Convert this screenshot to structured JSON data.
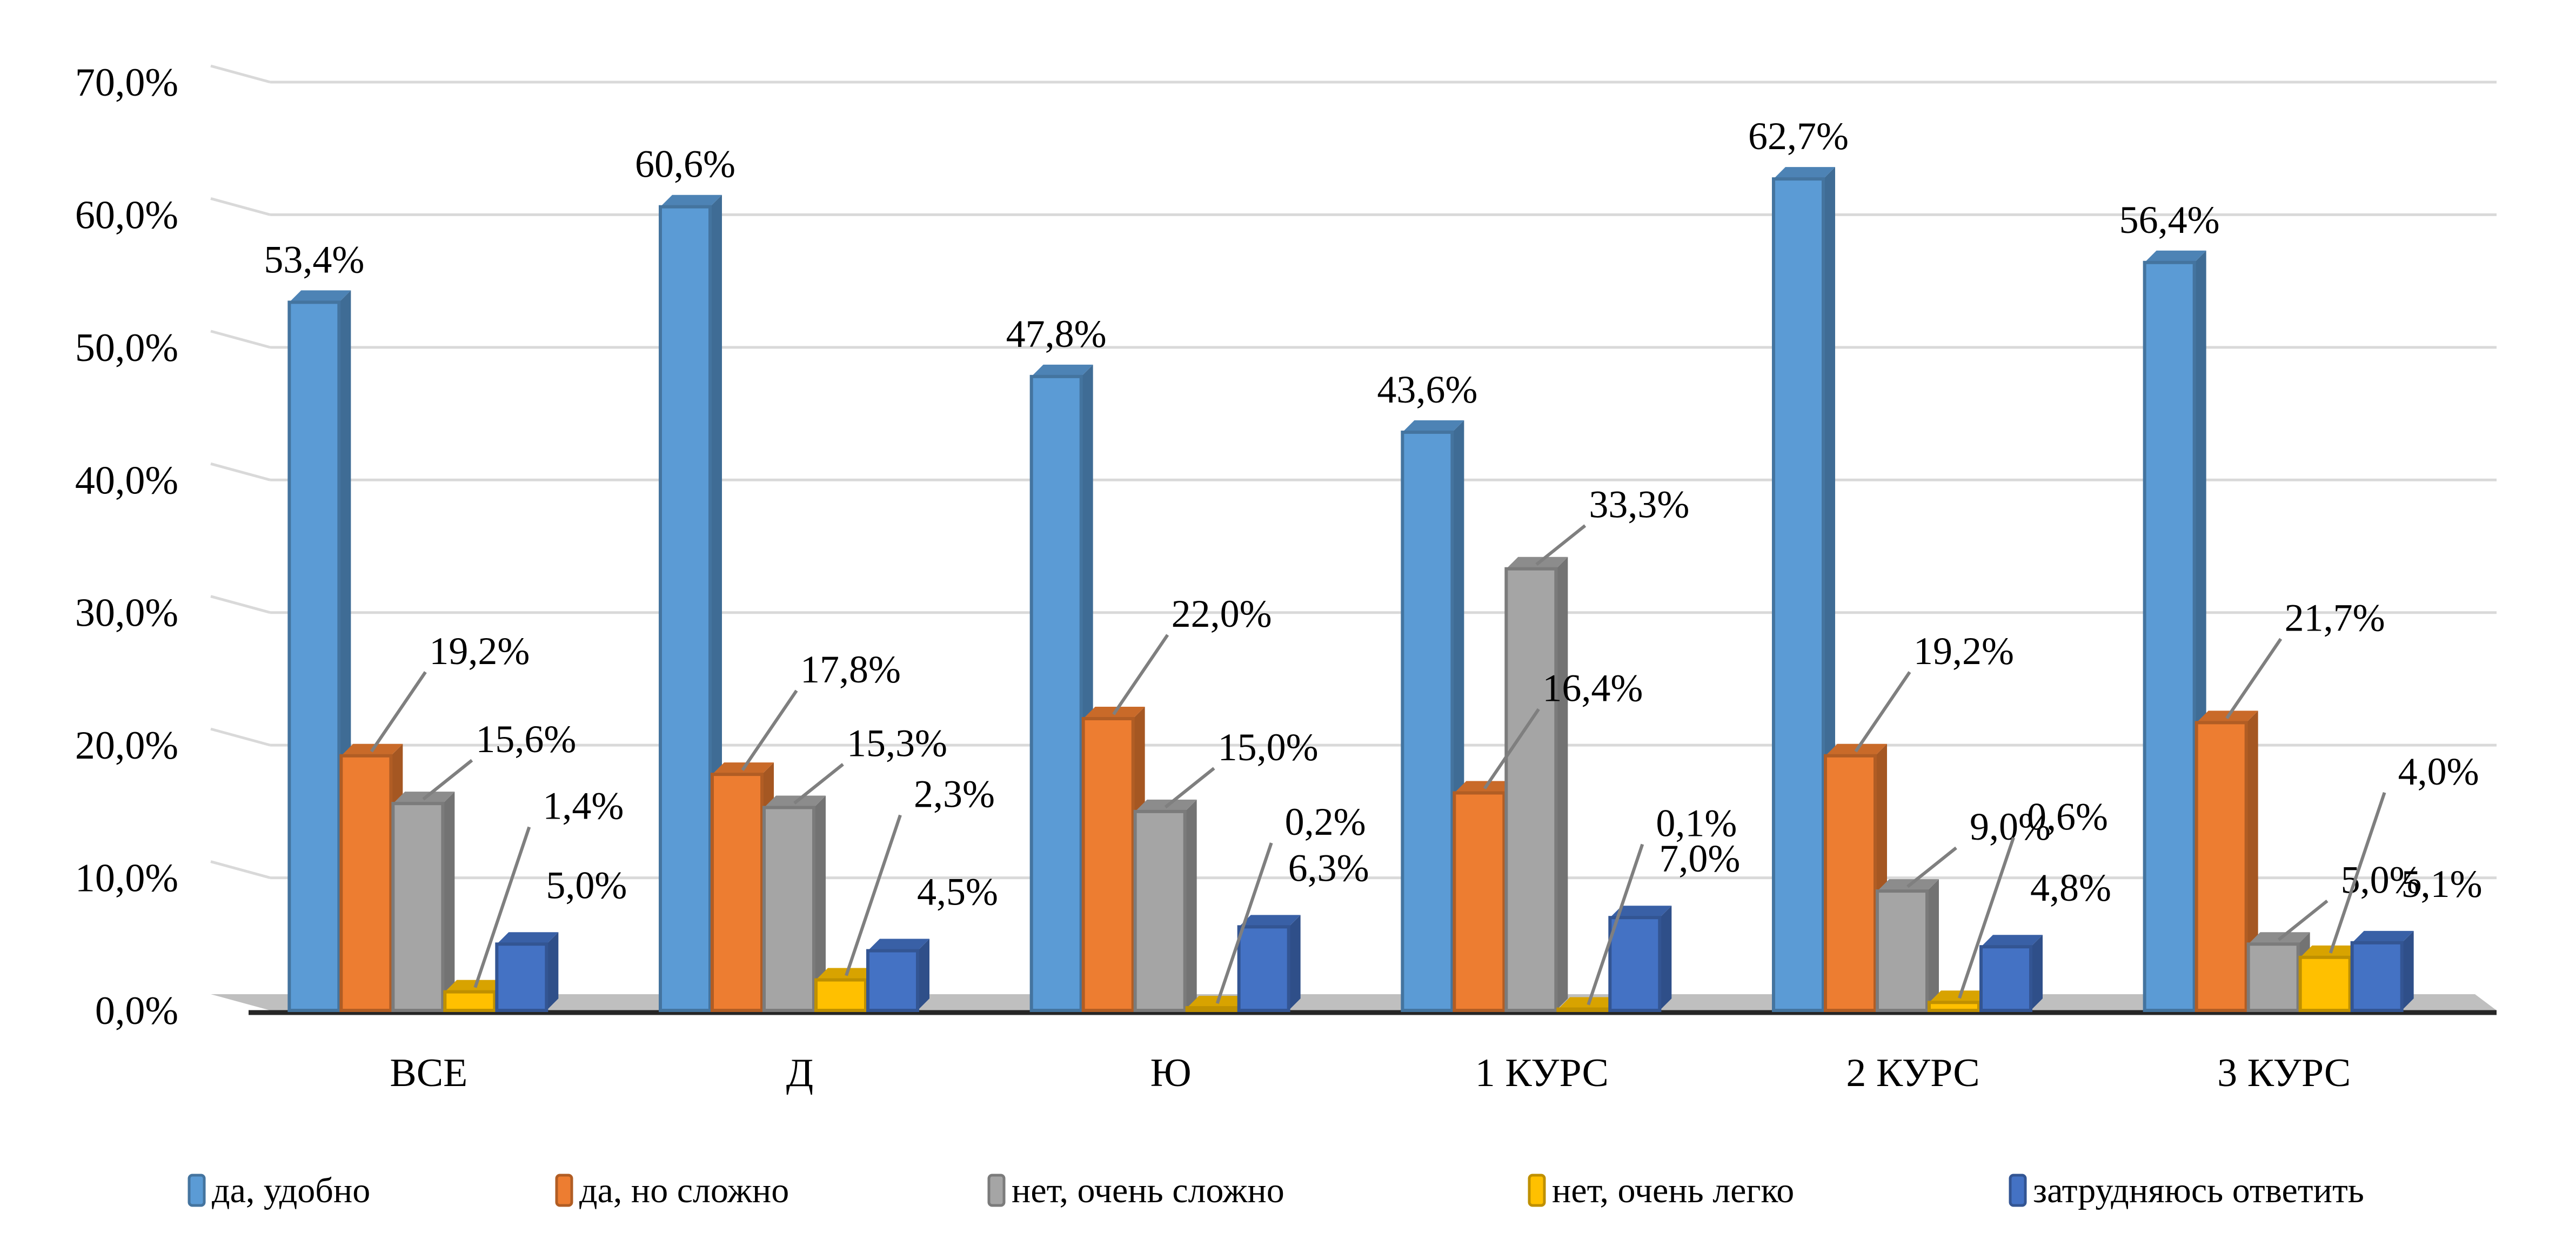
{
  "chart_data": {
    "type": "bar",
    "style": "3d-clustered-column",
    "title": "",
    "xlabel": "",
    "ylabel": "",
    "ylim": [
      0,
      70
    ],
    "yticks": [
      "0,0%",
      "10,0%",
      "20,0%",
      "30,0%",
      "40,0%",
      "50,0%",
      "60,0%",
      "70,0%"
    ],
    "grid": true,
    "legend_position": "bottom",
    "categories": [
      "ВСЕ",
      "Д",
      "Ю",
      "1 КУРС",
      "2 КУРС",
      "3 КУРС"
    ],
    "series": [
      {
        "name": "да, удобно",
        "color": "#5b9bd5",
        "values": [
          53.4,
          60.6,
          47.8,
          43.6,
          62.7,
          56.4
        ],
        "labels": [
          "53,4%",
          "60,6%",
          "47,8%",
          "43,6%",
          "62,7%",
          "56,4%"
        ]
      },
      {
        "name": "да, но сложно",
        "color": "#ed7d31",
        "values": [
          19.2,
          17.8,
          22.0,
          16.4,
          19.2,
          21.7
        ],
        "labels": [
          "19,2%",
          "17,8%",
          "22,0%",
          "16,4%",
          "19,2%",
          "21,7%"
        ]
      },
      {
        "name": "нет, очень сложно",
        "color": "#a5a5a5",
        "values": [
          15.6,
          15.3,
          15.0,
          33.3,
          9.0,
          5.0
        ],
        "labels": [
          "15,6%",
          "15,3%",
          "15,0%",
          "33,3%",
          "9,0%",
          "5,0%"
        ]
      },
      {
        "name": "нет, очень легко",
        "color": "#ffc000",
        "values": [
          1.4,
          2.3,
          0.2,
          0.1,
          0.6,
          4.0
        ],
        "labels": [
          "1,4%",
          "2,3%",
          "0,2%",
          "0,1%",
          "0,6%",
          "4,0%"
        ]
      },
      {
        "name": "затрудняюсь ответить",
        "color": "#4472c4",
        "values": [
          5.0,
          4.5,
          6.3,
          7.0,
          4.8,
          5.1
        ],
        "labels": [
          "5,0%",
          "4,5%",
          "6,3%",
          "7,0%",
          "4,8%",
          "5,1%"
        ]
      }
    ]
  }
}
